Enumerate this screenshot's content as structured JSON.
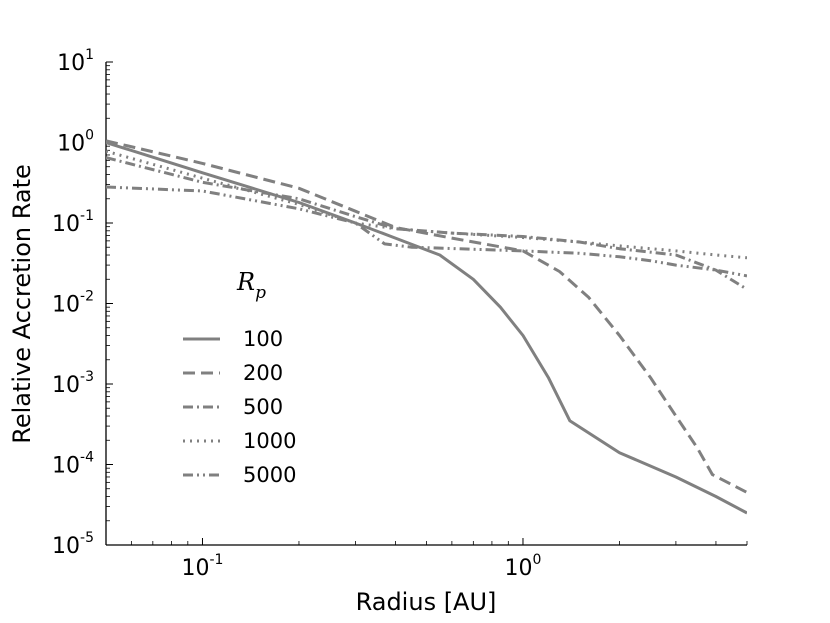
{
  "chart_data": {
    "type": "line",
    "xlabel": "Radius [AU]",
    "ylabel": "Relative Accretion Rate",
    "xscale": "log",
    "yscale": "log",
    "xlim": [
      0.05,
      5.0
    ],
    "ylim": [
      1e-05,
      10
    ],
    "grid": false,
    "legend_placement": "center-left",
    "legend_title": "R",
    "legend_title_sub": "p",
    "x_ticks": [
      {
        "base": "10",
        "exp": "-1",
        "value": 0.1
      },
      {
        "base": "10",
        "exp": "0",
        "value": 1
      }
    ],
    "y_ticks": [
      {
        "base": "10",
        "exp": "1",
        "value": 10
      },
      {
        "base": "10",
        "exp": "0",
        "value": 1
      },
      {
        "base": "10",
        "exp": "-1",
        "value": 0.1
      },
      {
        "base": "10",
        "exp": "-2",
        "value": 0.01
      },
      {
        "base": "10",
        "exp": "-3",
        "value": 0.001
      },
      {
        "base": "10",
        "exp": "-4",
        "value": 0.0001
      },
      {
        "base": "10",
        "exp": "-5",
        "value": 1e-05
      }
    ],
    "line_color": "#808080",
    "series": [
      {
        "name": "100",
        "dash": "solid",
        "x": [
          0.05,
          0.1,
          0.2,
          0.3,
          0.4,
          0.55,
          0.7,
          0.85,
          1.0,
          1.2,
          1.4,
          2.0,
          3.0,
          4.0,
          5.0
        ],
        "y": [
          1.0,
          0.42,
          0.18,
          0.1,
          0.065,
          0.04,
          0.02,
          0.009,
          0.004,
          0.0012,
          0.00035,
          0.00014,
          7e-05,
          4e-05,
          2.5e-05
        ]
      },
      {
        "name": "200",
        "dash": "dashed",
        "x": [
          0.05,
          0.1,
          0.2,
          0.3,
          0.4,
          0.6,
          1.0,
          1.3,
          1.6,
          2.0,
          2.5,
          3.0,
          3.5,
          3.9,
          5.0
        ],
        "y": [
          1.05,
          0.55,
          0.27,
          0.14,
          0.088,
          0.065,
          0.045,
          0.025,
          0.012,
          0.004,
          0.0012,
          0.0004,
          0.00016,
          7.5e-05,
          4.5e-05
        ]
      },
      {
        "name": "500",
        "dash": "dashdot",
        "x": [
          0.05,
          0.1,
          0.2,
          0.3,
          0.4,
          0.6,
          1.0,
          1.5,
          2.0,
          3.0,
          4.0,
          5.0
        ],
        "y": [
          0.65,
          0.32,
          0.2,
          0.12,
          0.085,
          0.075,
          0.068,
          0.058,
          0.048,
          0.04,
          0.026,
          0.015
        ]
      },
      {
        "name": "1000",
        "dash": "dotted",
        "x": [
          0.05,
          0.1,
          0.2,
          0.3,
          0.4,
          0.6,
          1.0,
          1.5,
          2.0,
          3.0,
          4.0,
          5.0
        ],
        "y": [
          0.78,
          0.36,
          0.17,
          0.1,
          0.085,
          0.075,
          0.066,
          0.058,
          0.052,
          0.045,
          0.04,
          0.037
        ]
      },
      {
        "name": "5000",
        "dash": "dashdotdot",
        "x": [
          0.05,
          0.1,
          0.2,
          0.3,
          0.37,
          0.45,
          1.0,
          1.5,
          2.0,
          2.5,
          3.0,
          4.0,
          5.0
        ],
        "y": [
          0.28,
          0.25,
          0.15,
          0.1,
          0.055,
          0.05,
          0.045,
          0.042,
          0.038,
          0.034,
          0.03,
          0.026,
          0.022
        ]
      }
    ]
  }
}
